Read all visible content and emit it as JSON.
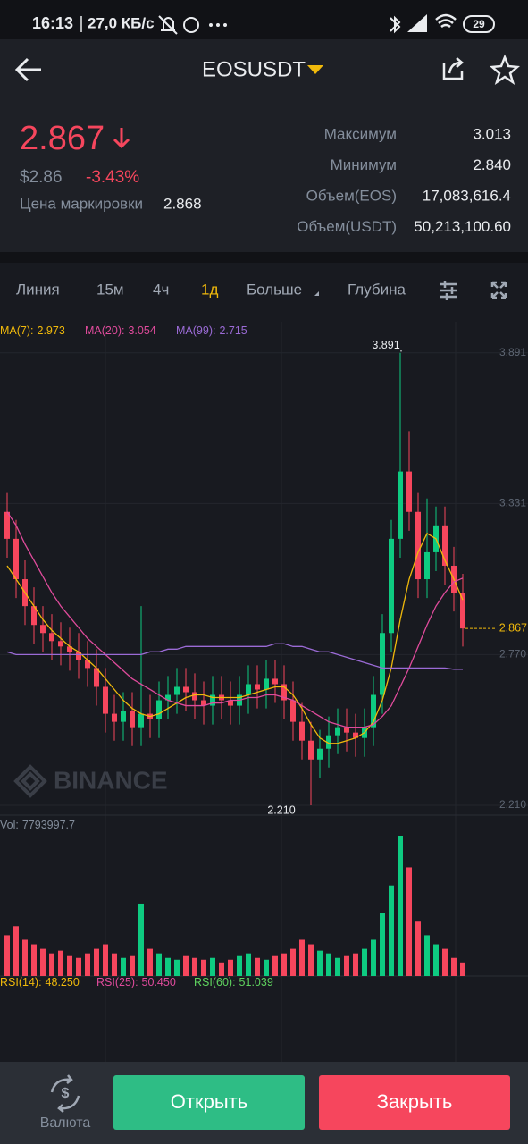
{
  "status_bar": {
    "time": "16:13",
    "speed": "27,0 КБ/с",
    "battery": "29"
  },
  "header": {
    "symbol": "EOSUSDT"
  },
  "price": {
    "last": "2.867",
    "usd": "$2.86",
    "change": "-3.43%",
    "mark_label": "Цена маркировки",
    "mark": "2.868"
  },
  "stats": [
    {
      "label": "Максимум",
      "value": "3.013"
    },
    {
      "label": "Минимум",
      "value": "2.840"
    },
    {
      "label": "Объем(EOS)",
      "value": "17,083,616.4"
    },
    {
      "label": "Объем(USDT)",
      "value": "50,213,100.60"
    }
  ],
  "tabs": [
    "Линия",
    "15м",
    "4ч",
    "1д",
    "Больше",
    "Глубина"
  ],
  "chart_data": {
    "type": "candlestick",
    "up_color": "#0ecb81",
    "down_color": "#f6465d",
    "ylim": [
      2.18,
      3.99
    ],
    "yticks": [
      3.891,
      3.331,
      {
        "value": 2.77,
        "label": "2.770"
      },
      {
        "value": 2.21,
        "label": "2.210"
      }
    ],
    "grid": true,
    "open": [
      3.3,
      3.2,
      3.05,
      2.95,
      2.88,
      2.85,
      2.82,
      2.8,
      2.78,
      2.75,
      2.72,
      2.65,
      2.55,
      2.52,
      2.56,
      2.5,
      2.55,
      2.53,
      2.6,
      2.62,
      2.65,
      2.63,
      2.6,
      2.58,
      2.62,
      2.6,
      2.58,
      2.62,
      2.66,
      2.64,
      2.68,
      2.66,
      2.6,
      2.52,
      2.45,
      2.38,
      2.42,
      2.47,
      2.5,
      2.48,
      2.46,
      2.5,
      2.62,
      2.85,
      3.2,
      3.45,
      3.3,
      3.05,
      3.15,
      3.25,
      3.1,
      3.0
    ],
    "high": [
      3.37,
      3.27,
      3.12,
      3.02,
      2.95,
      2.92,
      2.89,
      2.87,
      2.85,
      2.82,
      2.79,
      2.72,
      2.62,
      2.63,
      2.63,
      2.95,
      2.62,
      2.67,
      2.69,
      2.72,
      2.72,
      2.7,
      2.67,
      2.69,
      2.69,
      2.67,
      2.69,
      2.73,
      2.73,
      2.75,
      2.75,
      2.73,
      2.67,
      2.59,
      2.52,
      2.49,
      2.54,
      2.57,
      2.57,
      2.55,
      2.57,
      2.69,
      2.92,
      3.27,
      3.891,
      3.6,
      3.37,
      3.35,
      3.32,
      3.32,
      3.17,
      3.07
    ],
    "low": [
      3.13,
      2.98,
      2.88,
      2.81,
      2.78,
      2.75,
      2.73,
      2.71,
      2.68,
      2.65,
      2.58,
      2.48,
      2.45,
      2.45,
      2.43,
      2.43,
      2.46,
      2.46,
      2.53,
      2.55,
      2.56,
      2.53,
      2.51,
      2.51,
      2.53,
      2.51,
      2.51,
      2.55,
      2.57,
      2.57,
      2.59,
      2.53,
      2.45,
      2.38,
      2.21,
      2.31,
      2.35,
      2.4,
      2.41,
      2.39,
      2.39,
      2.43,
      2.55,
      2.78,
      3.13,
      3.23,
      2.98,
      2.98,
      3.08,
      3.03,
      2.93,
      2.8
    ],
    "close": [
      3.2,
      3.05,
      2.95,
      2.88,
      2.85,
      2.82,
      2.8,
      2.78,
      2.75,
      2.72,
      2.65,
      2.55,
      2.52,
      2.56,
      2.5,
      2.55,
      2.53,
      2.6,
      2.62,
      2.65,
      2.63,
      2.6,
      2.58,
      2.62,
      2.6,
      2.58,
      2.62,
      2.66,
      2.64,
      2.68,
      2.66,
      2.6,
      2.52,
      2.45,
      2.38,
      2.42,
      2.47,
      2.5,
      2.48,
      2.46,
      2.5,
      2.62,
      2.85,
      3.2,
      3.45,
      3.3,
      3.05,
      3.15,
      3.25,
      3.1,
      3.0,
      2.867
    ],
    "ma": [
      {
        "name": "MA(7):",
        "color": "#f0b90b",
        "values": [
          3.1,
          3.05,
          3.0,
          2.95,
          2.9,
          2.86,
          2.83,
          2.8,
          2.78,
          2.75,
          2.72,
          2.68,
          2.64,
          2.6,
          2.57,
          2.55,
          2.54,
          2.55,
          2.57,
          2.59,
          2.61,
          2.62,
          2.62,
          2.61,
          2.61,
          2.61,
          2.61,
          2.62,
          2.63,
          2.64,
          2.65,
          2.65,
          2.62,
          2.57,
          2.51,
          2.46,
          2.44,
          2.44,
          2.45,
          2.46,
          2.48,
          2.52,
          2.6,
          2.72,
          2.9,
          3.05,
          3.15,
          3.22,
          3.2,
          3.12,
          3.05,
          2.973
        ]
      },
      {
        "name": "MA(20):",
        "color": "#e04b9c",
        "values": [
          3.3,
          3.25,
          3.18,
          3.12,
          3.06,
          3.0,
          2.95,
          2.91,
          2.87,
          2.83,
          2.8,
          2.77,
          2.74,
          2.71,
          2.68,
          2.66,
          2.64,
          2.62,
          2.6,
          2.59,
          2.58,
          2.58,
          2.58,
          2.59,
          2.59,
          2.6,
          2.6,
          2.61,
          2.61,
          2.62,
          2.62,
          2.61,
          2.6,
          2.58,
          2.56,
          2.54,
          2.52,
          2.51,
          2.5,
          2.5,
          2.5,
          2.51,
          2.54,
          2.58,
          2.65,
          2.72,
          2.8,
          2.88,
          2.95,
          3.0,
          3.04,
          3.054
        ]
      },
      {
        "name": "MA(99):",
        "color": "#9b6bd6",
        "values": [
          2.78,
          2.77,
          2.77,
          2.77,
          2.77,
          2.77,
          2.77,
          2.77,
          2.77,
          2.77,
          2.77,
          2.77,
          2.77,
          2.77,
          2.77,
          2.77,
          2.78,
          2.78,
          2.79,
          2.79,
          2.8,
          2.8,
          2.8,
          2.8,
          2.8,
          2.8,
          2.8,
          2.8,
          2.8,
          2.8,
          2.81,
          2.81,
          2.8,
          2.8,
          2.79,
          2.78,
          2.78,
          2.77,
          2.76,
          2.75,
          2.74,
          2.73,
          2.72,
          2.72,
          2.72,
          2.72,
          2.72,
          2.72,
          2.72,
          2.72,
          2.715,
          2.715
        ]
      }
    ],
    "extremes": {
      "high": 3.891,
      "low": {
        "value": 2.21,
        "label": "2.210"
      }
    },
    "last_price": 2.867,
    "watermark": "BINANCE",
    "volume": {
      "label": "Vol:",
      "values": [
        23400000,
        28600000,
        20800000,
        18200000,
        15600000,
        13000000,
        14560000,
        11440000,
        10400000,
        13000000,
        15600000,
        18200000,
        13000000,
        10400000,
        11440000,
        41600000,
        15600000,
        13000000,
        10400000,
        9360000,
        11440000,
        10400000,
        9360000,
        10400000,
        7800000,
        9360000,
        11440000,
        13000000,
        10400000,
        9360000,
        11440000,
        13000000,
        15600000,
        20800000,
        18200000,
        14560000,
        13000000,
        10400000,
        11440000,
        13000000,
        15600000,
        20800000,
        36400000,
        52000000,
        80600000,
        62400000,
        31200000,
        23400000,
        18200000,
        15600000,
        10400000,
        7793997.7
      ]
    },
    "rsi": [
      {
        "name": "RSI(14):",
        "value": "48.250",
        "color": "#f0b90b"
      },
      {
        "name": "RSI(25):",
        "value": "50.450",
        "color": "#e04b9c"
      },
      {
        "name": "RSI(60):",
        "value": "51.039",
        "color": "#5fd35f"
      }
    ]
  },
  "footer": {
    "currency": "Валюта",
    "open": "Открыть",
    "close": "Закрыть"
  }
}
